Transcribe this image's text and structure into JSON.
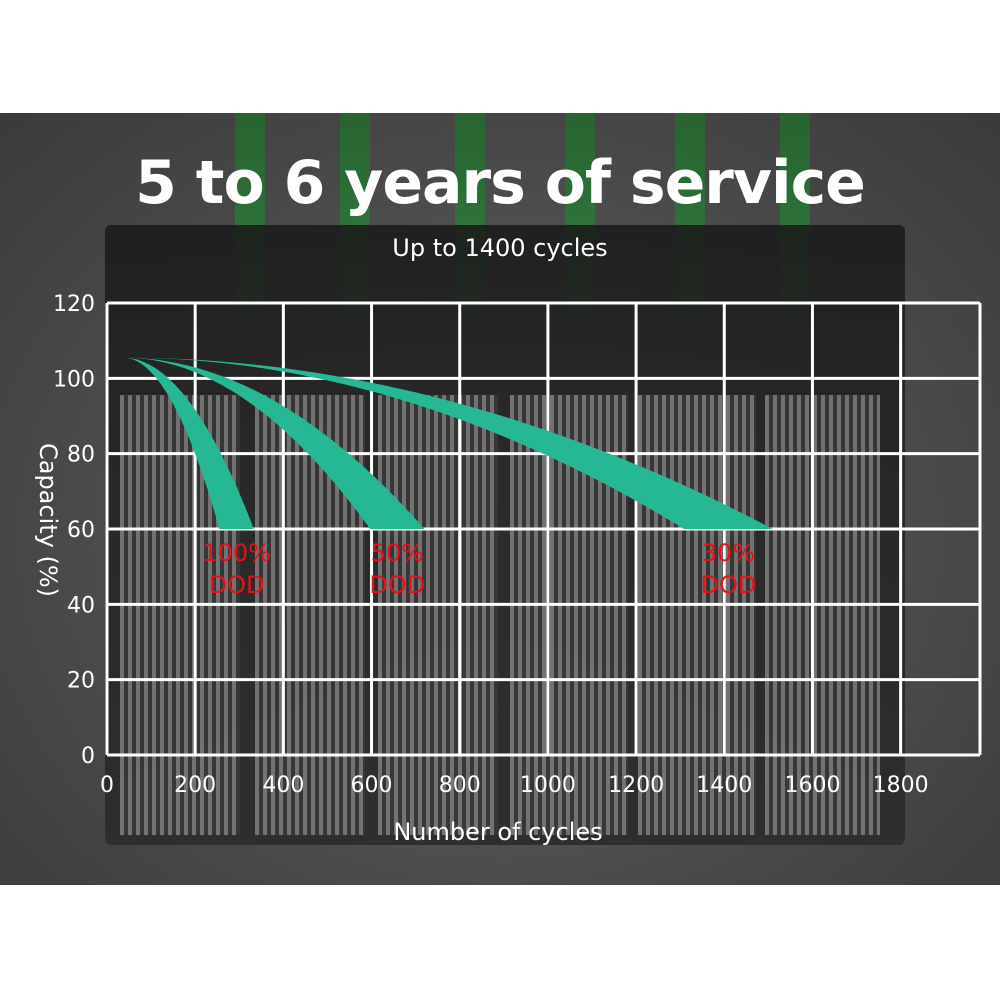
{
  "chart_data": {
    "type": "area",
    "title": "5 to 6 years of service",
    "subtitle": "Up to 1400 cycles",
    "xlabel": "Number of cycles",
    "ylabel": "Capacity (%)",
    "xlim": [
      0,
      1980
    ],
    "ylim": [
      0,
      120
    ],
    "xticks": [
      "0",
      "200",
      "400",
      "600",
      "800",
      "1000",
      "1200",
      "1400",
      "1600",
      "1800"
    ],
    "yticks": [
      "0",
      "20",
      "40",
      "60",
      "80",
      "100",
      "120"
    ],
    "grid": true,
    "series": [
      {
        "name": "100% DOD",
        "label_lines": [
          "100%",
          "DOD"
        ],
        "start": [
          36,
          105.5
        ],
        "end_capacity": 60,
        "end_cycles_range": [
          255,
          333
        ]
      },
      {
        "name": "50% DOD",
        "label_lines": [
          "50%",
          "DOD"
        ],
        "start": [
          36,
          105.5
        ],
        "end_capacity": 60,
        "end_cycles_range": [
          597,
          720
        ]
      },
      {
        "name": "30% DOD",
        "label_lines": [
          "30%",
          "DOD"
        ],
        "start": [
          36,
          105.5
        ],
        "end_capacity": 60,
        "end_cycles_range": [
          1309,
          1510
        ]
      }
    ],
    "colors": {
      "band": "#26b894",
      "label": "#e8101a",
      "grid": "#ffffff",
      "text": "#ffffff"
    }
  }
}
